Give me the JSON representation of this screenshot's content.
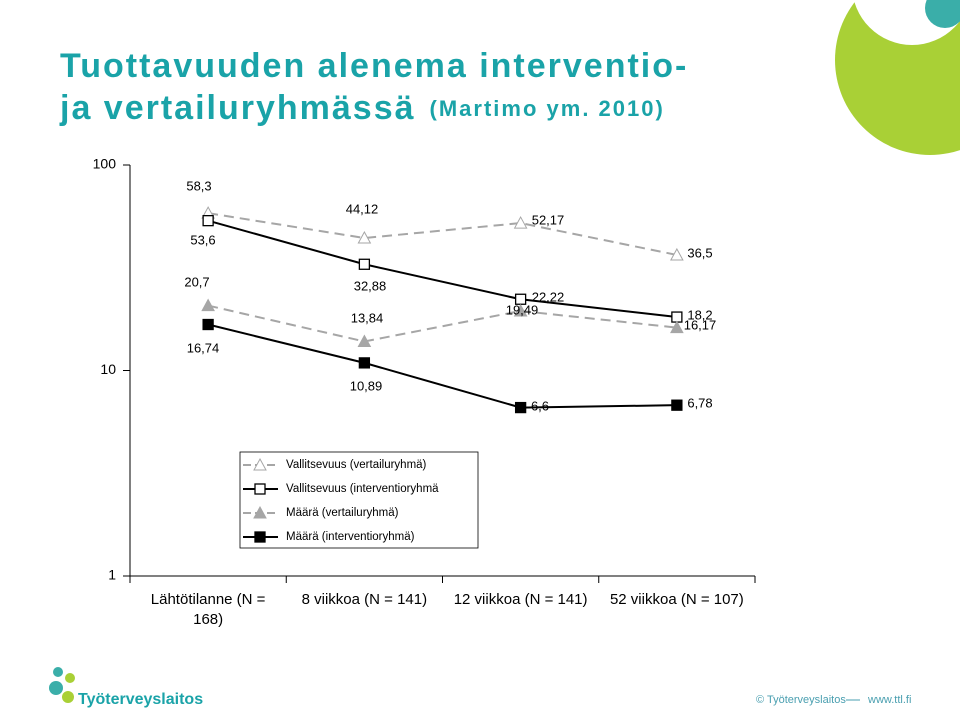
{
  "chart_data": {
    "type": "line",
    "title": [
      "Tuottavuuden alenema interventio-",
      "ja vertailuryhmässä"
    ],
    "subtitle": "(Martimo ym. 2010)",
    "categories": [
      "Lähtötilanne (N = 168)",
      "8 viikkoa (N = 141)",
      "12 viikkoa (N = 141)",
      "52 viikkoa (N = 107)"
    ],
    "log_scale": true,
    "ylim": [
      1,
      100
    ],
    "yticks": [
      1,
      10,
      100
    ],
    "series": [
      {
        "name": "Vallitsevuus (vertailuryhmä)",
        "color": "#a6a6a6",
        "line_style": "dashed",
        "marker": "triangle-open",
        "values": [
          58.3,
          44.12,
          52.17,
          36.5
        ],
        "value_labels": [
          "58,3",
          "44,12",
          "52,17",
          "36,5"
        ]
      },
      {
        "name": "Vallitsevuus (interventioryhmä",
        "color": "#000000",
        "line_style": "solid",
        "marker": "square-open",
        "values": [
          53.6,
          32.88,
          22.22,
          18.2
        ],
        "value_labels": [
          "53,6",
          "32,88",
          "22,22",
          "18,2"
        ]
      },
      {
        "name": "Määrä (vertailuryhmä)",
        "color": "#a6a6a6",
        "line_style": "dashed",
        "marker": "triangle-filled",
        "values": [
          20.7,
          13.84,
          19.49,
          16.17
        ],
        "value_labels": [
          "20,7",
          "13,84",
          "19,49",
          "16,17"
        ]
      },
      {
        "name": "Määrä (interventioryhmä)",
        "color": "#000000",
        "line_style": "solid",
        "marker": "square-filled",
        "values": [
          16.74,
          10.89,
          6.6,
          6.78
        ],
        "value_labels": [
          "16,74",
          "10,89",
          "6,6",
          "6,78"
        ]
      }
    ]
  },
  "footer": {
    "logo": "Työterveyslaitos",
    "copyright": "© Työterveyslaitos",
    "url": "www.ttl.fi"
  }
}
